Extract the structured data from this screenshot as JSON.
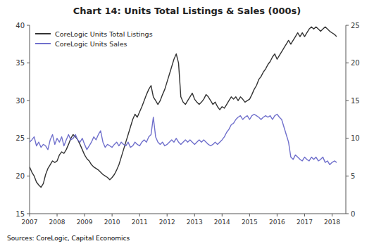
{
  "chart_data": {
    "type": "line",
    "title": "Chart 14: Units Total Listings & Sales (000s)",
    "annotations": [
      "Sources: CoreLogic, Capital Economics"
    ],
    "x": [
      2007,
      2007.083333,
      2007.166667,
      2007.25,
      2007.333333,
      2007.416667,
      2007.5,
      2007.583333,
      2007.666667,
      2007.75,
      2007.833333,
      2007.916667,
      2008,
      2008.083333,
      2008.166667,
      2008.25,
      2008.333333,
      2008.416667,
      2008.5,
      2008.583333,
      2008.666667,
      2008.75,
      2008.833333,
      2008.916667,
      2009,
      2009.083333,
      2009.166667,
      2009.25,
      2009.333333,
      2009.416667,
      2009.5,
      2009.583333,
      2009.666667,
      2009.75,
      2009.833333,
      2009.916667,
      2010,
      2010.083333,
      2010.166667,
      2010.25,
      2010.333333,
      2010.416667,
      2010.5,
      2010.583333,
      2010.666667,
      2010.75,
      2010.833333,
      2010.916667,
      2011,
      2011.083333,
      2011.166667,
      2011.25,
      2011.333333,
      2011.416667,
      2011.5,
      2011.583333,
      2011.666667,
      2011.75,
      2011.833333,
      2011.916667,
      2012,
      2012.083333,
      2012.166667,
      2012.25,
      2012.333333,
      2012.416667,
      2012.5,
      2012.583333,
      2012.666667,
      2012.75,
      2012.833333,
      2012.916667,
      2013,
      2013.083333,
      2013.166667,
      2013.25,
      2013.333333,
      2013.416667,
      2013.5,
      2013.583333,
      2013.666667,
      2013.75,
      2013.833333,
      2013.916667,
      2014,
      2014.083333,
      2014.166667,
      2014.25,
      2014.333333,
      2014.416667,
      2014.5,
      2014.583333,
      2014.666667,
      2014.75,
      2014.833333,
      2014.916667,
      2015,
      2015.083333,
      2015.166667,
      2015.25,
      2015.333333,
      2015.416667,
      2015.5,
      2015.583333,
      2015.666667,
      2015.75,
      2015.833333,
      2015.916667,
      2016,
      2016.083333,
      2016.166667,
      2016.25,
      2016.333333,
      2016.416667,
      2016.5,
      2016.583333,
      2016.666667,
      2016.75,
      2016.833333,
      2016.916667,
      2017,
      2017.083333,
      2017.166667,
      2017.25,
      2017.333333,
      2017.416667,
      2017.5,
      2017.583333,
      2017.666667,
      2017.75,
      2017.833333,
      2017.916667,
      2018,
      2018.083333,
      2018.166667
    ],
    "xlim": [
      2007.0,
      2018.5
    ],
    "xticks": [
      2007,
      2008,
      2009,
      2010,
      2011,
      2012,
      2013,
      2014,
      2015,
      2016,
      2017,
      2018
    ],
    "ylim": [
      15,
      40
    ],
    "yticks": [
      15,
      20,
      25,
      30,
      35,
      40
    ],
    "y2lim": [
      0,
      25
    ],
    "y2ticks": [
      0,
      5,
      10,
      15,
      20,
      25
    ],
    "grid": false,
    "legend": "top-left",
    "series": [
      {
        "name": "CoreLogic Units Total Listings",
        "color": "#333333",
        "values": [
          21.2,
          20.5,
          20.0,
          19.2,
          18.8,
          18.5,
          19.0,
          20.2,
          21.0,
          21.5,
          22.0,
          21.8,
          22.0,
          22.8,
          23.2,
          23.0,
          23.5,
          24.2,
          25.0,
          25.5,
          25.2,
          24.8,
          24.2,
          23.5,
          22.8,
          22.3,
          22.0,
          21.5,
          21.2,
          21.0,
          20.8,
          20.5,
          20.2,
          20.0,
          19.8,
          19.5,
          19.8,
          20.2,
          20.8,
          21.5,
          22.5,
          23.5,
          24.5,
          25.5,
          26.5,
          27.5,
          28.2,
          27.8,
          28.5,
          29.2,
          30.0,
          30.8,
          31.5,
          32.0,
          30.5,
          30.0,
          29.5,
          30.0,
          30.8,
          31.5,
          32.5,
          33.5,
          34.5,
          35.5,
          36.2,
          35.0,
          30.5,
          29.8,
          29.5,
          30.0,
          30.5,
          31.0,
          30.2,
          29.8,
          29.5,
          29.8,
          30.2,
          30.8,
          30.5,
          30.0,
          29.5,
          29.8,
          29.2,
          28.8,
          29.2,
          29.0,
          29.5,
          30.0,
          30.5,
          30.2,
          30.5,
          30.0,
          30.5,
          30.2,
          29.8,
          30.0,
          30.2,
          30.8,
          31.5,
          32.0,
          32.8,
          33.2,
          33.8,
          34.2,
          34.8,
          35.2,
          35.8,
          36.2,
          35.5,
          36.0,
          36.5,
          37.0,
          37.5,
          38.0,
          37.5,
          38.0,
          38.5,
          39.0,
          38.5,
          39.0,
          38.5,
          39.0,
          39.5,
          39.8,
          39.5,
          39.8,
          39.5,
          39.2,
          39.5,
          39.8,
          39.5,
          39.2,
          39.0,
          38.8,
          38.5
        ]
      },
      {
        "name": "CoreLogic Units Sales",
        "color": "#7070cc",
        "axis": "y2",
        "values": [
          9.5,
          9.8,
          10.2,
          9.0,
          9.5,
          8.8,
          9.2,
          9.0,
          8.5,
          9.8,
          10.5,
          9.2,
          10.0,
          9.5,
          10.2,
          9.0,
          9.8,
          10.5,
          9.8,
          10.0,
          10.5,
          9.8,
          9.5,
          10.0,
          9.2,
          8.5,
          9.0,
          9.5,
          10.2,
          9.8,
          10.5,
          11.0,
          9.5,
          8.8,
          9.2,
          9.0,
          8.8,
          9.2,
          9.5,
          9.0,
          9.5,
          9.2,
          9.0,
          9.5,
          8.8,
          9.0,
          9.5,
          9.2,
          9.0,
          9.5,
          9.8,
          9.5,
          10.2,
          10.5,
          12.8,
          10.2,
          9.5,
          9.2,
          9.5,
          9.0,
          9.2,
          9.5,
          9.8,
          9.5,
          10.0,
          9.5,
          9.2,
          9.5,
          9.8,
          9.5,
          9.8,
          9.5,
          9.2,
          9.5,
          9.8,
          9.5,
          9.8,
          9.5,
          9.2,
          9.0,
          9.2,
          9.5,
          9.2,
          9.5,
          9.8,
          10.2,
          10.8,
          11.2,
          11.8,
          12.0,
          12.5,
          12.8,
          13.0,
          12.5,
          12.8,
          13.0,
          12.5,
          13.0,
          13.2,
          13.0,
          12.8,
          12.5,
          12.8,
          13.0,
          12.8,
          13.0,
          12.5,
          13.0,
          13.2,
          12.8,
          12.5,
          11.5,
          10.5,
          9.5,
          7.5,
          7.2,
          7.8,
          7.5,
          7.2,
          7.0,
          7.5,
          7.2,
          7.0,
          7.5,
          7.2,
          7.5,
          7.0,
          7.2,
          7.5,
          6.8,
          7.0,
          6.5,
          6.8,
          7.0,
          6.8
        ]
      }
    ]
  }
}
